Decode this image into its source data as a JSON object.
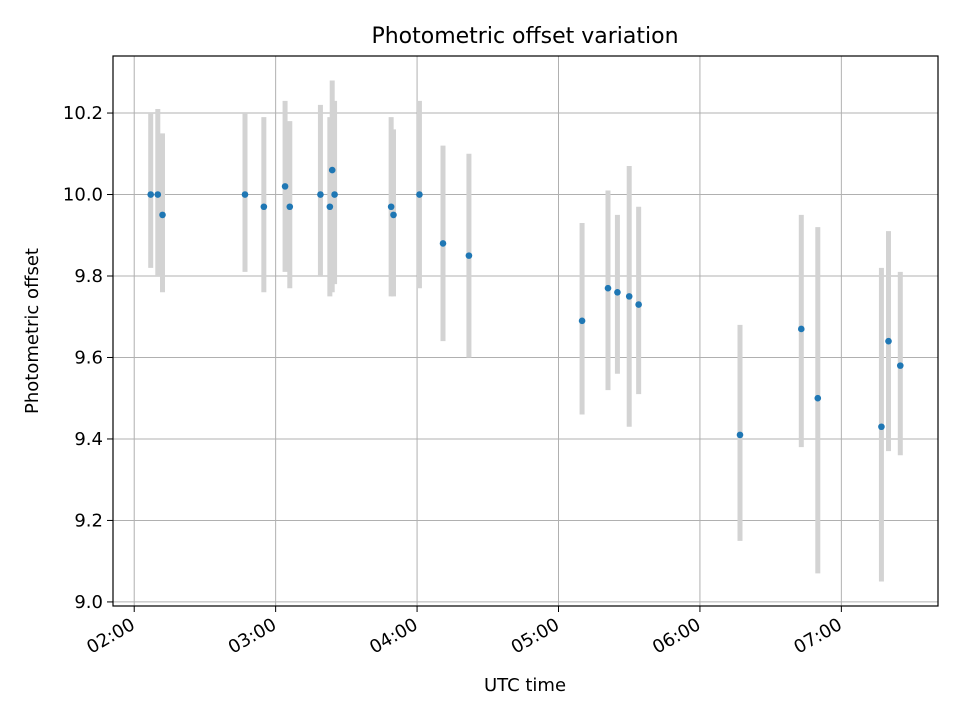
{
  "chart_data": {
    "type": "scatter",
    "title": "Photometric offset variation",
    "xlabel": "UTC time",
    "ylabel": "Photometric offset",
    "x_ticks": [
      "02:00",
      "03:00",
      "04:00",
      "05:00",
      "06:00",
      "07:00"
    ],
    "y_ticks": [
      "9.0",
      "9.2",
      "9.4",
      "9.6",
      "9.8",
      "10.0",
      "10.2"
    ],
    "xlim": [
      "01:51",
      "07:41"
    ],
    "ylim": [
      8.99,
      10.34
    ],
    "grid": true,
    "error_bar_color": "#d3d3d3",
    "point_color": "#1f77b4",
    "points": [
      {
        "x": "02:07",
        "y": 10.0,
        "y_low": 9.82,
        "y_high": 10.2
      },
      {
        "x": "02:10",
        "y": 10.0,
        "y_low": 9.8,
        "y_high": 10.21
      },
      {
        "x": "02:12",
        "y": 9.95,
        "y_low": 9.76,
        "y_high": 10.15
      },
      {
        "x": "02:47",
        "y": 10.0,
        "y_low": 9.81,
        "y_high": 10.2
      },
      {
        "x": "02:55",
        "y": 9.97,
        "y_low": 9.76,
        "y_high": 10.19
      },
      {
        "x": "03:04",
        "y": 10.02,
        "y_low": 9.81,
        "y_high": 10.23
      },
      {
        "x": "03:06",
        "y": 9.97,
        "y_low": 9.77,
        "y_high": 10.18
      },
      {
        "x": "03:19",
        "y": 10.0,
        "y_low": 9.8,
        "y_high": 10.22
      },
      {
        "x": "03:23",
        "y": 9.97,
        "y_low": 9.75,
        "y_high": 10.19
      },
      {
        "x": "03:24",
        "y": 10.06,
        "y_low": 9.76,
        "y_high": 10.28
      },
      {
        "x": "03:25",
        "y": 10.0,
        "y_low": 9.78,
        "y_high": 10.23
      },
      {
        "x": "03:49",
        "y": 9.97,
        "y_low": 9.75,
        "y_high": 10.19
      },
      {
        "x": "03:50",
        "y": 9.95,
        "y_low": 9.75,
        "y_high": 10.16
      },
      {
        "x": "04:01",
        "y": 10.0,
        "y_low": 9.77,
        "y_high": 10.23
      },
      {
        "x": "04:11",
        "y": 9.88,
        "y_low": 9.64,
        "y_high": 10.12
      },
      {
        "x": "04:22",
        "y": 9.85,
        "y_low": 9.6,
        "y_high": 10.1
      },
      {
        "x": "05:10",
        "y": 9.69,
        "y_low": 9.46,
        "y_high": 9.93
      },
      {
        "x": "05:21",
        "y": 9.77,
        "y_low": 9.52,
        "y_high": 10.01
      },
      {
        "x": "05:25",
        "y": 9.76,
        "y_low": 9.56,
        "y_high": 9.95
      },
      {
        "x": "05:30",
        "y": 9.75,
        "y_low": 9.43,
        "y_high": 10.07
      },
      {
        "x": "05:34",
        "y": 9.73,
        "y_low": 9.51,
        "y_high": 9.97
      },
      {
        "x": "06:17",
        "y": 9.41,
        "y_low": 9.15,
        "y_high": 9.68
      },
      {
        "x": "06:43",
        "y": 9.67,
        "y_low": 9.38,
        "y_high": 9.95
      },
      {
        "x": "06:50",
        "y": 9.5,
        "y_low": 9.07,
        "y_high": 9.92
      },
      {
        "x": "07:17",
        "y": 9.43,
        "y_low": 9.05,
        "y_high": 9.82
      },
      {
        "x": "07:20",
        "y": 9.64,
        "y_low": 9.37,
        "y_high": 9.91
      },
      {
        "x": "07:25",
        "y": 9.58,
        "y_low": 9.36,
        "y_high": 9.81
      }
    ]
  }
}
